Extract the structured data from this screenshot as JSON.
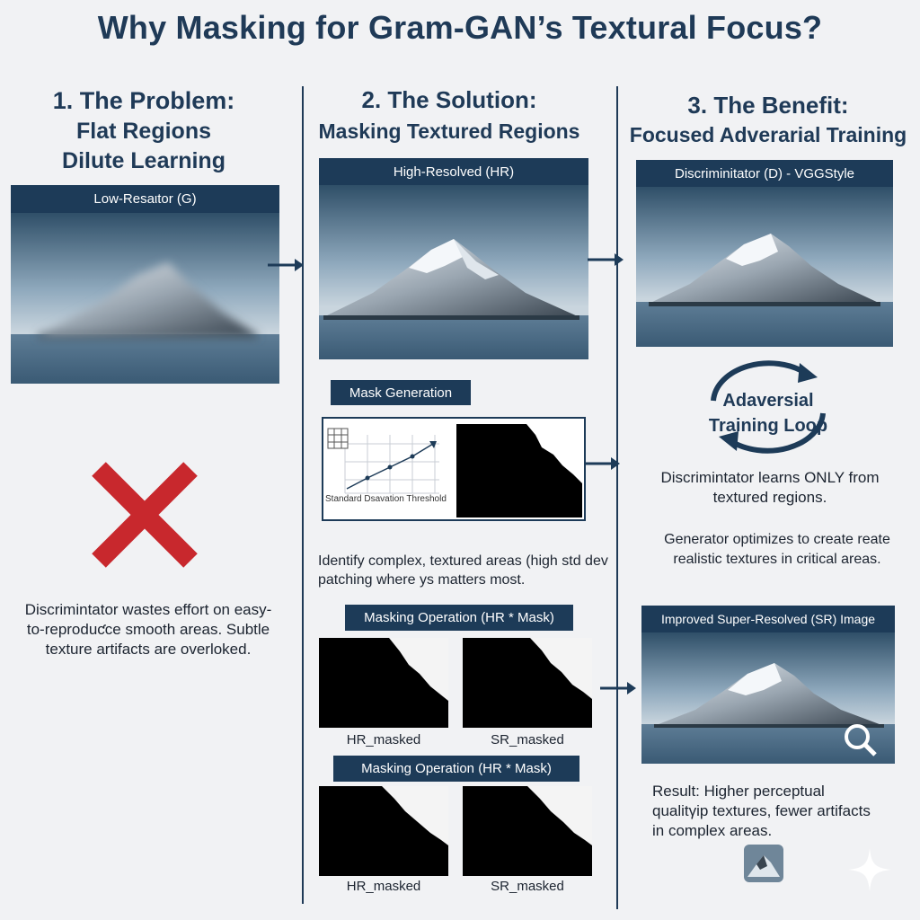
{
  "title": "Why Masking for Gram-GAN’s Textural Focus?",
  "col1": {
    "heading_line1": "1. The Problem:",
    "heading_line2": "Flat Regions",
    "heading_line3": "Dilute Learning",
    "image_label": "Low-Resaιtor (G)",
    "caption": "Discrimintator wastes effort on easy-to-reproduƈce smooth areas. Subtle texture artifacts are overloked."
  },
  "col2": {
    "heading_line1": "2. The Solution:",
    "heading_line2": "Masking Textured Regions",
    "image_label": "High-Resolved (HR)",
    "mask_gen_label": "Mask Generation",
    "threshold_label": "Standard Dsavation Threshold",
    "caption": "Identify complex, textured areas (high std dev patching where ys matters most.",
    "masking_op_label_1": "Masking Operation (HR * Mask)",
    "masking_op_label_2": "Masking Operation (HR * Mask)",
    "hr_masked_1": "HR_masked",
    "sr_masked_1": "SR_masked",
    "hr_masked_2": "HR_masked",
    "sr_masked_2": "SR_masked"
  },
  "col3": {
    "heading_line1": "3. The Benefit:",
    "heading_line2": "Focused Adverarial Training",
    "disc_label": "Discriminitator (D) - VGGStyle",
    "loop_line1": "Adaversial",
    "loop_line2": "Training Loop",
    "caption_1": "Discrimintator learns ONLY from textured regions.",
    "caption_2": "Generator optimizes to create reate realistic textures in critical areas.",
    "sr_label": "Improved Super-Resolved (SR) Image",
    "result_caption": "Result: Higher perceptual qualitγip textures, fewer artifacts in complex areas."
  },
  "colors": {
    "navy": "#1d3b58",
    "accent_red": "#c8282d",
    "background": "#f1f2f4"
  },
  "icons": [
    "arrow-right-icon",
    "cross-icon",
    "grid-icon",
    "magnifier-icon",
    "cycle-arrow-icon",
    "sparkle-icon"
  ]
}
